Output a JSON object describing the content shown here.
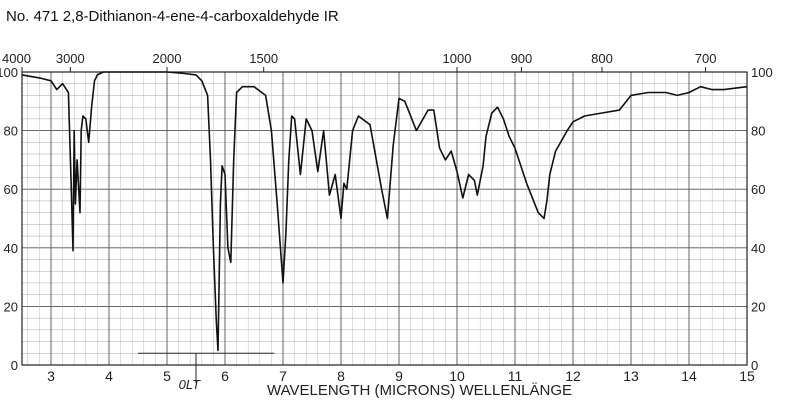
{
  "title": "No. 471 2,8-Dithianon-4-ene-4-carboxaldehyde IR",
  "chart_data": {
    "type": "line",
    "title": "No. 471 2,8-Dithianon-4-ene-4-carboxaldehyde IR",
    "xlabel": "WAVELENGTH (MICRONS) WELLENLÄNGE",
    "ylabel": "",
    "xlim": [
      2.5,
      15
    ],
    "ylim": [
      0,
      100
    ],
    "x_ticks": [
      3,
      4,
      5,
      6,
      7,
      8,
      9,
      10,
      11,
      12,
      13,
      14,
      15
    ],
    "y_ticks": [
      0,
      20,
      40,
      60,
      80,
      100
    ],
    "y_ticks_right": [
      0,
      20,
      40,
      60,
      80,
      100
    ],
    "top_axis": [
      {
        "label": "4000",
        "micron": 2.5
      },
      {
        "label": "3000",
        "micron": 3.333
      },
      {
        "label": "2000",
        "micron": 5.0
      },
      {
        "label": "1500",
        "micron": 6.667
      },
      {
        "label": "1000",
        "micron": 10.0
      },
      {
        "label": "900",
        "micron": 11.111
      },
      {
        "label": "800",
        "micron": 12.5
      },
      {
        "label": "700",
        "micron": 14.286
      }
    ],
    "annotation": "0LT",
    "grid": true,
    "series": [
      {
        "name": "",
        "x": [
          2.5,
          2.8,
          3.0,
          3.1,
          3.2,
          3.3,
          3.35,
          3.38,
          3.4,
          3.42,
          3.45,
          3.5,
          3.52,
          3.55,
          3.6,
          3.65,
          3.7,
          3.75,
          3.8,
          3.9,
          4.0,
          4.5,
          5.0,
          5.3,
          5.5,
          5.6,
          5.7,
          5.75,
          5.8,
          5.85,
          5.88,
          5.9,
          5.92,
          5.95,
          6.0,
          6.05,
          6.1,
          6.15,
          6.2,
          6.3,
          6.5,
          6.7,
          6.8,
          6.9,
          7.0,
          7.05,
          7.1,
          7.15,
          7.2,
          7.3,
          7.4,
          7.5,
          7.6,
          7.7,
          7.8,
          7.9,
          8.0,
          8.05,
          8.1,
          8.2,
          8.3,
          8.5,
          8.7,
          8.8,
          8.9,
          9.0,
          9.1,
          9.3,
          9.5,
          9.6,
          9.7,
          9.8,
          9.9,
          10.0,
          10.1,
          10.2,
          10.3,
          10.35,
          10.45,
          10.5,
          10.6,
          10.7,
          10.8,
          10.9,
          11.0,
          11.2,
          11.4,
          11.5,
          11.55,
          11.6,
          11.7,
          11.9,
          12.0,
          12.2,
          12.5,
          12.8,
          13.0,
          13.3,
          13.6,
          13.8,
          14.0,
          14.2,
          14.4,
          14.6,
          15.0
        ],
        "y": [
          99,
          98,
          97,
          94,
          96,
          93,
          60,
          39,
          80,
          55,
          70,
          52,
          80,
          85,
          84,
          76,
          88,
          97,
          99,
          100,
          100,
          100,
          100,
          99.5,
          99,
          97,
          92,
          70,
          40,
          15,
          5,
          30,
          55,
          68,
          65,
          40,
          35,
          70,
          93,
          95,
          95,
          92,
          80,
          55,
          28,
          45,
          70,
          85,
          84,
          65,
          84,
          80,
          66,
          80,
          58,
          65,
          50,
          62,
          60,
          80,
          85,
          82,
          60,
          50,
          75,
          91,
          90,
          80,
          87,
          87,
          74,
          70,
          73,
          66,
          57,
          65,
          63,
          58,
          68,
          78,
          86,
          88,
          84,
          78,
          74,
          62,
          52,
          50,
          56,
          65,
          73,
          80,
          83,
          85,
          86,
          87,
          92,
          93,
          93,
          92,
          93,
          95,
          94,
          94,
          95
        ]
      }
    ]
  }
}
